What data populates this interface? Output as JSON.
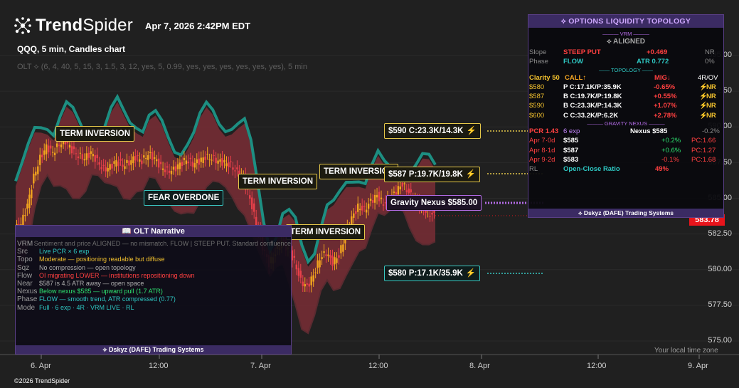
{
  "header": {
    "brand": {
      "bold": "Trend",
      "light": "Spider"
    },
    "timestamp": "Apr 7, 2026 2:42PM EDT",
    "symbol_line": "QQQ, 5 min, Candles chart",
    "indicator_line": "OLT ⟡ (6, 4, 40, 5, 15, 3, 1.5, 3, 12, yes, 5, 0.99, yes, yes, yes, yes, yes, yes), 5 min"
  },
  "axes": {
    "y_ticks": [
      "595.00",
      "592.50",
      "590.00",
      "587.50",
      "585.00",
      "582.50",
      "580.00",
      "577.50",
      "575.00"
    ],
    "x_ticks": [
      "6. Apr",
      "12:00",
      "7. Apr",
      "12:00",
      "8. Apr",
      "12:00",
      "9. Apr"
    ],
    "timezone_note": "Your local time zone",
    "last_price": "583.78"
  },
  "chart_labels": {
    "term1": "TERM INVERSION",
    "term2": "TERM INVERSION",
    "term3": "TERM INVERSION",
    "term4": "TERM INVERSION",
    "fear": "FEAR OVERDONE",
    "lvl590": "$590 C:23.3K/14.3K",
    "lvl587": "$587 P:19.7K/19.8K",
    "gravity": "Gravity Nexus $585.00",
    "lvl580": "$580 P:17.1K/35.9K",
    "flame": "⚡"
  },
  "chart_data": {
    "type": "candlestick",
    "title": "QQQ, 5 min, Candles chart",
    "ylim": [
      575,
      596
    ],
    "x_ticks": [
      "6. Apr",
      "12:00",
      "7. Apr",
      "12:00",
      "8. Apr",
      "12:00",
      "9. Apr"
    ],
    "close_path": [
      582.8,
      583.2,
      584.5,
      586.5,
      587.8,
      588.6,
      588.2,
      588.8,
      589.0,
      588.4,
      588.0,
      587.8,
      588.2,
      587.6,
      587.0,
      587.2,
      587.6,
      587.3,
      587.5,
      587.9,
      587.6,
      588.1,
      587.8,
      587.2,
      586.9,
      587.0,
      587.4,
      587.7,
      587.4,
      587.6,
      587.9,
      587.8,
      587.6,
      587.5,
      587.3,
      586.8,
      586.4,
      585.0,
      583.2,
      581.6,
      580.4,
      581.2,
      582.0,
      581.4,
      580.6,
      579.2,
      578.8,
      579.6,
      580.8,
      581.2,
      580.5,
      581.0,
      582.4,
      583.6,
      584.4,
      584.2,
      584.8,
      585.2,
      584.6,
      585.0,
      585.5,
      586.0,
      585.4,
      584.8,
      584.4,
      584.0,
      583.8
    ],
    "levels": [
      {
        "price": 590.0,
        "label": "$590 C:23.3K/14.3K"
      },
      {
        "price": 587.0,
        "label": "$587 P:19.7K/19.8K"
      },
      {
        "price": 585.0,
        "label": "Gravity Nexus $585.00"
      },
      {
        "price": 580.0,
        "label": "$580 P:17.1K/35.9K"
      }
    ],
    "last_price": 583.78,
    "colors": {
      "up": "#f2a41e",
      "down": "#e8404a",
      "band": "#7a2e36",
      "upper_line": "#1d8f82",
      "level_yellow": "#e6c84a",
      "level_teal": "#39c8c2",
      "level_purple": "#b36be6"
    }
  },
  "narrative": {
    "title": "📖 OLT Narrative",
    "rows": [
      {
        "k": "VRM",
        "v": "Sentiment and price ALIGNED — no mismatch. FLOW | STEEP PUT. Standard confluence"
      },
      {
        "k": "Src",
        "v": "Live PCR × 6 exp"
      },
      {
        "k": "Topo",
        "v": "Moderate — positioning readable but diffuse"
      },
      {
        "k": "Sqz",
        "v": "No compression — open topology"
      },
      {
        "k": "Flow",
        "v": "OI migrating LOWER — institutions repositioning down"
      },
      {
        "k": "Near",
        "v": "$587 is 4.5 ATR away — open space"
      },
      {
        "k": "Nexus",
        "v": "Below nexus $585 — upward pull (1.7 ATR)"
      },
      {
        "k": "Phase",
        "v": "FLOW — smooth trend, ATR compressed (0.77)"
      },
      {
        "k": "Mode",
        "v": "Full · 6 exp · 4R · VRM LIVE · RL"
      }
    ],
    "footer": "⟡ Dskyz (DAFE) Trading Systems"
  },
  "options": {
    "title": "⟡ OPTIONS LIQUIDITY TOPOLOGY",
    "sec_vrm": "——— VRM ———",
    "aligned": "⟡ ALIGNED",
    "slope_k": "Slope",
    "slope_v": "STEEP PUT",
    "slope_n": "+0.469",
    "slope_r": "NR",
    "phase_k": "Phase",
    "phase_v": "FLOW",
    "phase_n": "ATR 0.772",
    "phase_r": "0%",
    "sec_topo": "—— TOPOLOGY ——",
    "clarity": "Clarity 50",
    "clarity_call": "CALL↑",
    "mig": "MIG↓",
    "hdr_r": "4R/OV",
    "rows": [
      {
        "strike": "$580",
        "oi": "P C:17.1K/P:35.9K",
        "pct": "-0.65%",
        "flag": "NR"
      },
      {
        "strike": "$587",
        "oi": "B C:19.7K/P:19.8K",
        "pct": "+0.55%",
        "flag": "NR"
      },
      {
        "strike": "$590",
        "oi": "B C:23.3K/P:14.3K",
        "pct": "+1.07%",
        "flag": "NR"
      },
      {
        "strike": "$600",
        "oi": "C C:33.2K/P:6.2K",
        "pct": "+2.78%",
        "flag": "NR"
      }
    ],
    "sec_grav": "——— GRAVITY NEXUS ———",
    "pcr": "PCR 1.43",
    "pcr_exp": "6 exp",
    "nexus": "Nexus $585",
    "nexus_pct": "-0.2%",
    "exp_rows": [
      {
        "date": "Apr 7·0d",
        "strike": "$585",
        "pct": "+0.2%",
        "pc": "PC:1.66"
      },
      {
        "date": "Apr 8·1d",
        "strike": "$587",
        "pct": "+0.6%",
        "pc": "PC:1.27"
      },
      {
        "date": "Apr 9·2d",
        "strike": "$583",
        "pct": "-0.1%",
        "pc": "PC:1.68"
      }
    ],
    "rl_k": "RL",
    "rl_v": "Open-Close Ratio",
    "rl_n": "49%",
    "footer": "⟡ Dskyz (DAFE) Trading Systems"
  }
}
